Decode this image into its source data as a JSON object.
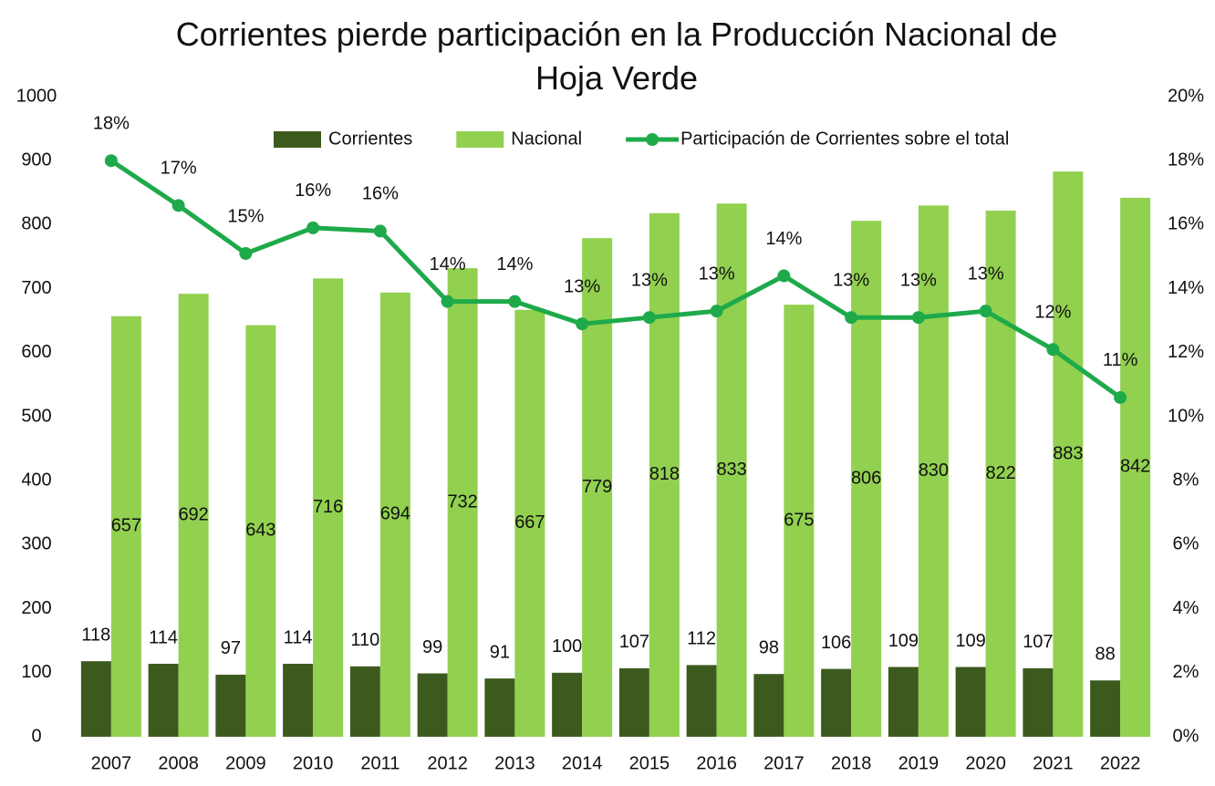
{
  "chart_data": {
    "type": "bar",
    "title": "Corrientes pierde participación en la Producción Nacional de Hoja Verde",
    "categories": [
      "2007",
      "2008",
      "2009",
      "2010",
      "2011",
      "2012",
      "2013",
      "2014",
      "2015",
      "2016",
      "2017",
      "2018",
      "2019",
      "2020",
      "2021",
      "2022"
    ],
    "series": [
      {
        "name": "Corrientes",
        "color": "#3d5a1e",
        "values": [
          118,
          114,
          97,
          114,
          110,
          99,
          91,
          100,
          107,
          112,
          98,
          106,
          109,
          109,
          107,
          88
        ]
      },
      {
        "name": "Nacional",
        "color": "#92d050",
        "values": [
          657,
          692,
          643,
          716,
          694,
          732,
          667,
          779,
          818,
          833,
          675,
          806,
          830,
          822,
          883,
          842
        ]
      },
      {
        "name": "Participación de Corrientes sobre el total",
        "color": "#1eaa4a",
        "type": "line",
        "axis": "y2",
        "values": [
          18.0,
          16.6,
          15.1,
          15.9,
          15.8,
          13.6,
          13.6,
          12.9,
          13.1,
          13.3,
          14.4,
          13.1,
          13.1,
          13.3,
          12.1,
          10.6
        ],
        "value_labels": [
          "18%",
          "17%",
          "15%",
          "16%",
          "16%",
          "14%",
          "14%",
          "13%",
          "13%",
          "13%",
          "14%",
          "13%",
          "13%",
          "13%",
          "12%",
          "11%"
        ]
      }
    ],
    "ylim": [
      0,
      1000
    ],
    "yticks": [
      0,
      100,
      200,
      300,
      400,
      500,
      600,
      700,
      800,
      900,
      1000
    ],
    "y2lim": [
      0,
      20
    ],
    "y2ticks": [
      {
        "value": 0,
        "label": "0%"
      },
      {
        "value": 2,
        "label": "2%"
      },
      {
        "value": 4,
        "label": "4%"
      },
      {
        "value": 6,
        "label": "6%"
      },
      {
        "value": 8,
        "label": "8%"
      },
      {
        "value": 10,
        "label": "10%"
      },
      {
        "value": 12,
        "label": "12%"
      },
      {
        "value": 14,
        "label": "14%"
      },
      {
        "value": 16,
        "label": "16%"
      },
      {
        "value": 18,
        "label": "18%"
      },
      {
        "value": 20,
        "label": "20%"
      }
    ],
    "grid": false,
    "legend": "top"
  }
}
